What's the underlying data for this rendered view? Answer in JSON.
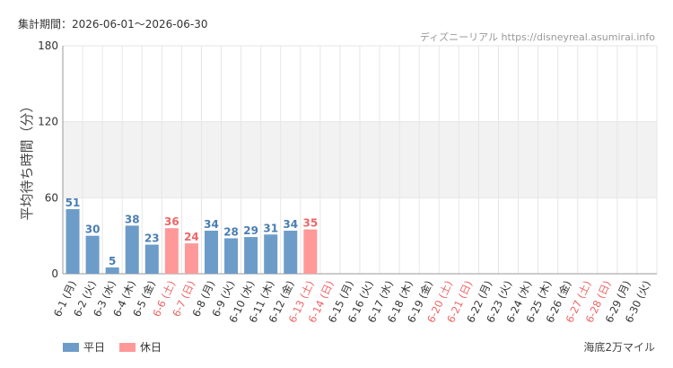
{
  "header": {
    "period_label": "集計期間：2026-06-01〜2026-06-30",
    "source": "ディズニーリアル https://disneyreal.asumirai.info",
    "attraction": "海底2万マイル"
  },
  "colors": {
    "weekday": "#6d9cc9",
    "holiday": "#ff9999",
    "weekday_text": "#4a7db3",
    "holiday_text": "#ee6666",
    "band": "#f2f2f2",
    "grid": "#e6e6e6"
  },
  "legend": [
    {
      "key": "weekday",
      "label": "平日"
    },
    {
      "key": "holiday",
      "label": "休日"
    }
  ],
  "chart_data": {
    "type": "bar",
    "ylabel": "平均待ち時間（分）",
    "xlabel": "",
    "ylim": [
      0,
      180
    ],
    "yticks": [
      0,
      60,
      120,
      180
    ],
    "band": [
      60,
      120
    ],
    "categories": [
      "6-1 (月)",
      "6-2 (火)",
      "6-3 (水)",
      "6-4 (木)",
      "6-5 (金)",
      "6-6 (土)",
      "6-7 (日)",
      "6-8 (月)",
      "6-9 (火)",
      "6-10 (水)",
      "6-11 (木)",
      "6-12 (金)",
      "6-13 (土)",
      "6-14 (日)",
      "6-15 (月)",
      "6-16 (火)",
      "6-17 (水)",
      "6-18 (木)",
      "6-19 (金)",
      "6-20 (土)",
      "6-21 (日)",
      "6-22 (月)",
      "6-23 (火)",
      "6-24 (水)",
      "6-25 (木)",
      "6-26 (金)",
      "6-27 (土)",
      "6-28 (日)",
      "6-29 (月)",
      "6-30 (火)"
    ],
    "day_type": [
      "weekday",
      "weekday",
      "weekday",
      "weekday",
      "weekday",
      "holiday",
      "holiday",
      "weekday",
      "weekday",
      "weekday",
      "weekday",
      "weekday",
      "holiday",
      "holiday",
      "weekday",
      "weekday",
      "weekday",
      "weekday",
      "weekday",
      "holiday",
      "holiday",
      "weekday",
      "weekday",
      "weekday",
      "weekday",
      "weekday",
      "holiday",
      "holiday",
      "weekday",
      "weekday"
    ],
    "values": [
      51,
      30,
      5,
      38,
      23,
      36,
      24,
      34,
      28,
      29,
      31,
      34,
      35,
      null,
      null,
      null,
      null,
      null,
      null,
      null,
      null,
      null,
      null,
      null,
      null,
      null,
      null,
      null,
      null,
      null
    ],
    "value_labels": [
      "51",
      "30",
      "5",
      "38",
      "23",
      "36",
      "24",
      "34",
      "28",
      "29",
      "31",
      "34",
      "35",
      "",
      "",
      "",
      "",
      "",
      "",
      "",
      "",
      "",
      "",
      "",
      "",
      "",
      "",
      "",
      "",
      ""
    ],
    "grid": true
  }
}
